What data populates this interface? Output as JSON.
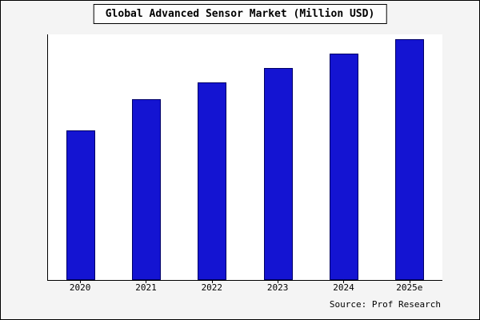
{
  "title": "Global Advanced Sensor Market (Million USD)",
  "source": "Source: Prof Research",
  "chart_data": {
    "type": "bar",
    "title": "Global Advanced Sensor Market (Million USD)",
    "categories": [
      "2020",
      "2021",
      "2022",
      "2023",
      "2024",
      "2025e"
    ],
    "values": [
      62,
      75,
      82,
      88,
      94,
      100
    ],
    "xlabel": "",
    "ylabel": "",
    "ylim": [
      0,
      102
    ],
    "grid": false,
    "legend": false,
    "bar_fill_color": "#1414d2",
    "bar_border_color": "#000066",
    "annotations": [
      "Source: Prof Research"
    ]
  }
}
